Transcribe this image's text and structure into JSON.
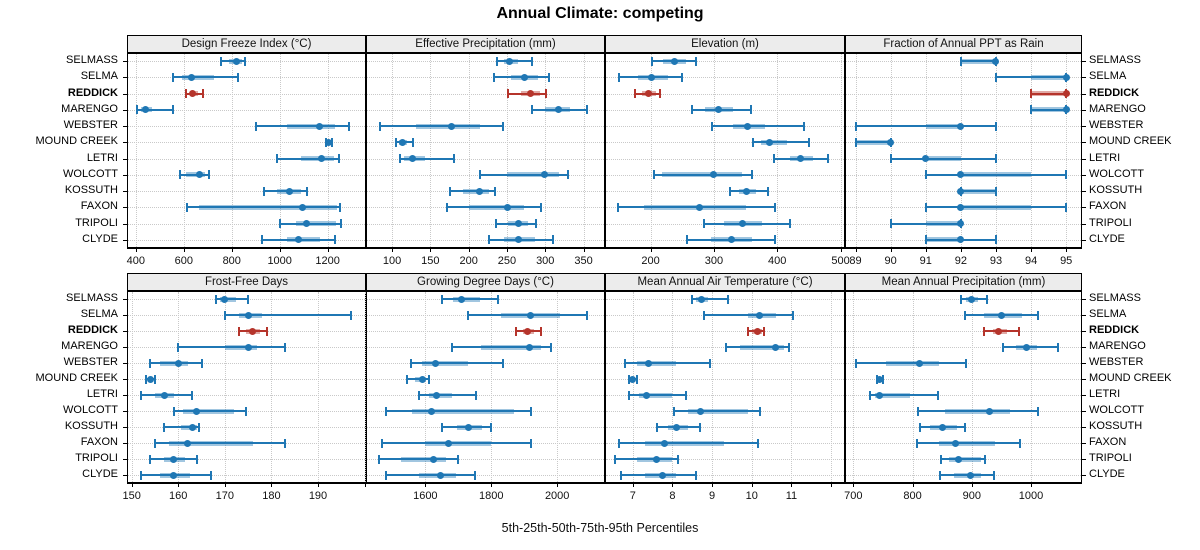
{
  "chart_data": {
    "type": "dotplot",
    "title": "Annual Climate: competing",
    "caption": "5th-25th-50th-75th-95th Percentiles",
    "legend_note": "values per site are [5th, 25th, 50th, 75th, 95th] percentiles",
    "sites": [
      "SELMASS",
      "SELMA",
      "REDDICK",
      "MARENGO",
      "WEBSTER",
      "MOUND CREEK",
      "LETRI",
      "WOLCOTT",
      "KOSSUTH",
      "FAXON",
      "TRIPOLI",
      "CLYDE"
    ],
    "highlight_site": "REDDICK",
    "colors": {
      "series": "#1f77b4",
      "series_band": "rgba(31,119,180,0.42)",
      "highlight": "#b5342b",
      "highlight_band": "rgba(181,52,43,0.42)",
      "grid": "#c9c9c9",
      "strip_bg": "#ececec",
      "border": "#000000"
    },
    "layout_hints": {
      "grid": "dotted",
      "rows": 2,
      "cols": 4,
      "site_labels": "both sides"
    },
    "panels": [
      {
        "title": "Design Freeze Index (°C)",
        "xlim": [
          363,
          1360
        ],
        "ticks": [
          400,
          600,
          800,
          1000,
          1200
        ],
        "tick_step": 200,
        "values": [
          [
            755,
            790,
            820,
            842,
            855
          ],
          [
            555,
            592,
            630,
            728,
            825
          ],
          [
            608,
            625,
            638,
            660,
            682
          ],
          [
            405,
            420,
            440,
            468,
            555
          ],
          [
            900,
            1030,
            1165,
            1230,
            1290
          ],
          [
            1192,
            1199,
            1205,
            1211,
            1218
          ],
          [
            990,
            1090,
            1175,
            1225,
            1248
          ],
          [
            585,
            610,
            665,
            690,
            705
          ],
          [
            935,
            990,
            1040,
            1090,
            1115
          ],
          [
            615,
            665,
            1095,
            1240,
            1252
          ],
          [
            1000,
            1068,
            1112,
            1235,
            1255
          ],
          [
            925,
            1030,
            1078,
            1167,
            1229
          ]
        ]
      },
      {
        "title": "Effective Precipitation (mm)",
        "xlim": [
          66,
          378
        ],
        "ticks": [
          100,
          150,
          200,
          250,
          300,
          350
        ],
        "tick_step": 50,
        "values": [
          [
            237,
            246,
            253,
            264,
            283
          ],
          [
            233,
            255,
            273,
            290,
            305
          ],
          [
            252,
            268,
            281,
            293,
            301
          ],
          [
            283,
            300,
            317,
            332,
            355
          ],
          [
            84,
            131,
            178,
            215,
            245
          ],
          [
            105,
            109,
            113,
            120,
            128
          ],
          [
            110,
            115,
            127,
            143,
            181
          ],
          [
            215,
            250,
            299,
            318,
            330
          ],
          [
            176,
            192,
            214,
            227,
            235
          ],
          [
            172,
            200,
            251,
            272,
            295
          ],
          [
            236,
            251,
            265,
            277,
            288
          ],
          [
            227,
            246,
            265,
            287,
            310
          ]
        ]
      },
      {
        "title": "Elevation (m)",
        "xlim": [
          128,
          507
        ],
        "ticks": [
          200,
          300,
          400,
          500
        ],
        "tick_step": 100,
        "values": [
          [
            203,
            220,
            238,
            256,
            272
          ],
          [
            150,
            180,
            202,
            228,
            250
          ],
          [
            175,
            186,
            197,
            208,
            215
          ],
          [
            265,
            286,
            307,
            330,
            358
          ],
          [
            297,
            330,
            353,
            380,
            443
          ],
          [
            362,
            374,
            387,
            415,
            450
          ],
          [
            395,
            420,
            437,
            457,
            480
          ],
          [
            205,
            218,
            300,
            345,
            360
          ],
          [
            325,
            340,
            352,
            366,
            385
          ],
          [
            148,
            190,
            277,
            350,
            397
          ],
          [
            285,
            316,
            345,
            376,
            420
          ],
          [
            258,
            295,
            327,
            360,
            397
          ]
        ]
      },
      {
        "title": "Fraction of Annual PPT as Rain",
        "xlim": [
          88.7,
          95.45
        ],
        "ticks": [
          89,
          90,
          91,
          92,
          93,
          94,
          95
        ],
        "tick_step": 1,
        "values": [
          [
            92,
            92,
            93,
            93,
            93
          ],
          [
            93,
            94,
            95,
            95,
            95
          ],
          [
            94,
            94,
            95,
            95,
            95
          ],
          [
            94,
            94,
            95,
            95,
            95
          ],
          [
            89,
            91,
            92,
            92,
            93
          ],
          [
            89,
            89,
            90,
            90,
            90
          ],
          [
            90,
            91,
            91,
            92,
            93
          ],
          [
            91,
            92,
            92,
            94,
            95
          ],
          [
            92,
            92,
            92,
            93,
            93
          ],
          [
            91,
            92,
            92,
            94,
            95
          ],
          [
            90,
            91,
            92,
            92,
            92
          ],
          [
            91,
            91,
            92,
            92,
            93
          ]
        ]
      },
      {
        "title": "Frost-Free Days",
        "xlim": [
          149,
          200.3
        ],
        "ticks": [
          150,
          160,
          170,
          180,
          190
        ],
        "tick_step": 10,
        "values": [
          [
            168,
            169,
            170,
            172.5,
            175
          ],
          [
            170,
            173,
            175,
            178,
            197
          ],
          [
            173,
            174.5,
            176,
            177.5,
            179
          ],
          [
            160,
            170,
            175,
            177,
            183
          ],
          [
            154,
            156,
            160,
            162,
            165
          ],
          [
            153,
            153.5,
            154,
            154.5,
            155
          ],
          [
            152,
            155,
            157,
            159,
            163
          ],
          [
            159,
            161,
            164,
            172,
            174.5
          ],
          [
            157,
            160.5,
            163,
            164,
            164.5
          ],
          [
            155,
            158,
            162,
            176,
            183
          ],
          [
            154,
            157,
            159,
            161.5,
            164
          ],
          [
            152,
            156,
            159,
            162.5,
            167
          ]
        ]
      },
      {
        "title": "Growing Degree Days (°C)",
        "xlim": [
          1420,
          2145
        ],
        "ticks": [
          1600,
          1800,
          2000
        ],
        "tick_step": 200,
        "values": [
          [
            1650,
            1685,
            1710,
            1765,
            1820
          ],
          [
            1730,
            1830,
            1920,
            2010,
            2090
          ],
          [
            1875,
            1895,
            1910,
            1930,
            1950
          ],
          [
            1680,
            1770,
            1915,
            1950,
            1980
          ],
          [
            1555,
            1590,
            1630,
            1730,
            1835
          ],
          [
            1545,
            1570,
            1590,
            1600,
            1612
          ],
          [
            1580,
            1612,
            1635,
            1680,
            1755
          ],
          [
            1480,
            1560,
            1620,
            1870,
            1920
          ],
          [
            1650,
            1695,
            1730,
            1772,
            1800
          ],
          [
            1470,
            1600,
            1670,
            1800,
            1920
          ],
          [
            1460,
            1525,
            1625,
            1662,
            1700
          ],
          [
            1480,
            1580,
            1645,
            1692,
            1750
          ]
        ]
      },
      {
        "title": "Mean Annual Air Temperature (°C)",
        "xlim": [
          6.3,
          12.35
        ],
        "ticks": [
          7,
          8,
          9,
          10,
          11
        ],
        "tick_step": 1,
        "values": [
          [
            8.5,
            8.6,
            8.72,
            8.9,
            9.4
          ],
          [
            8.8,
            9.9,
            10.2,
            10.6,
            11.05
          ],
          [
            9.9,
            10.0,
            10.15,
            10.25,
            10.32
          ],
          [
            9.35,
            9.7,
            10.6,
            10.8,
            10.95
          ],
          [
            6.8,
            7.1,
            7.4,
            8.1,
            8.95
          ],
          [
            6.9,
            6.95,
            7.0,
            7.05,
            7.1
          ],
          [
            6.9,
            7.15,
            7.35,
            8.0,
            8.35
          ],
          [
            8.05,
            8.4,
            8.7,
            9.9,
            10.2
          ],
          [
            7.6,
            7.9,
            8.1,
            8.4,
            8.7
          ],
          [
            6.65,
            7.3,
            7.8,
            9.3,
            10.15
          ],
          [
            6.55,
            7.1,
            7.6,
            8.0,
            8.15
          ],
          [
            6.7,
            7.3,
            7.75,
            8.1,
            8.6
          ]
        ]
      },
      {
        "title": "Mean Annual Precipitation (mm)",
        "xlim": [
          686,
          1086
        ],
        "ticks": [
          700,
          800,
          900,
          1000
        ],
        "tick_step": 100,
        "values": [
          [
            882,
            890,
            900,
            910,
            925
          ],
          [
            888,
            920,
            950,
            985,
            1012
          ],
          [
            920,
            935,
            945,
            960,
            980
          ],
          [
            953,
            975,
            992,
            1010,
            1045
          ],
          [
            705,
            755,
            812,
            845,
            890
          ],
          [
            740,
            742,
            745,
            747,
            750
          ],
          [
            728,
            737,
            745,
            795,
            843
          ],
          [
            810,
            855,
            930,
            965,
            1012
          ],
          [
            812,
            830,
            850,
            875,
            888
          ],
          [
            807,
            845,
            873,
            940,
            982
          ],
          [
            848,
            862,
            878,
            915,
            922
          ],
          [
            847,
            870,
            897,
            915,
            938
          ]
        ]
      }
    ]
  }
}
